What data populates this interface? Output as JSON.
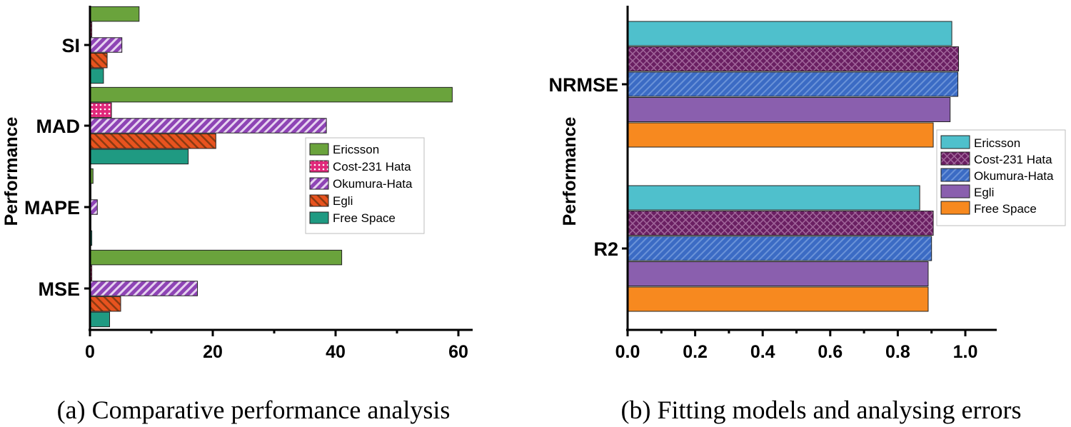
{
  "colors": {
    "Ericsson_a": "#6aa33c",
    "Cost231_a": "#e0287a",
    "Okumura_a": "#8e44b5",
    "Egli_a": "#e8531f",
    "FreeSpace_a": "#1f9a82",
    "Ericsson_b": "#4fc0cc",
    "Cost231_b": "#6a1f62",
    "Okumura_b": "#3b6bc4",
    "Egli_b": "#8a5fae",
    "FreeSpace_b": "#f7891f"
  },
  "chart_data": [
    {
      "type": "bar",
      "orientation": "horizontal",
      "caption": "(a) Comparative performance analysis",
      "ylabel": "Performance",
      "xlabel": "",
      "xlim": [
        0,
        60
      ],
      "xticks": [
        "0",
        "20",
        "40",
        "60"
      ],
      "categories": [
        "SI",
        "MAD",
        "MAPE",
        "MSE"
      ],
      "legend_position": "right-middle",
      "series": [
        {
          "name": "Ericsson",
          "pattern": "solid",
          "values": [
            8,
            59,
            0.5,
            41
          ]
        },
        {
          "name": "Cost-231 Hata",
          "pattern": "dots",
          "values": [
            0.3,
            3.5,
            0.1,
            0.3
          ]
        },
        {
          "name": "Okumura-Hata",
          "pattern": "diag-down",
          "values": [
            5.2,
            38.5,
            1.2,
            17.5
          ]
        },
        {
          "name": "Egli",
          "pattern": "diag-up",
          "values": [
            2.8,
            20.5,
            0.1,
            5
          ]
        },
        {
          "name": "Free Space",
          "pattern": "solid",
          "values": [
            2.2,
            16,
            0.3,
            3.2
          ]
        }
      ]
    },
    {
      "type": "bar",
      "orientation": "horizontal",
      "caption": "(b) Fitting models and analysing errors",
      "ylabel": "Performance",
      "xlabel": "",
      "xlim": [
        0,
        1.08
      ],
      "xticks": [
        "0.0",
        "0.2",
        "0.4",
        "0.6",
        "0.8",
        "1.0"
      ],
      "categories": [
        "NRMSE",
        "R2"
      ],
      "legend_position": "right-middle",
      "series": [
        {
          "name": "Ericsson",
          "pattern": "solid",
          "values": [
            0.96,
            0.865
          ]
        },
        {
          "name": "Cost-231 Hata",
          "pattern": "cross",
          "values": [
            0.98,
            0.905
          ]
        },
        {
          "name": "Okumura-Hata",
          "pattern": "diag-down",
          "values": [
            0.978,
            0.9
          ]
        },
        {
          "name": "Egli",
          "pattern": "solid",
          "values": [
            0.955,
            0.89
          ]
        },
        {
          "name": "Free Space",
          "pattern": "solid",
          "values": [
            0.905,
            0.89
          ]
        }
      ]
    }
  ]
}
